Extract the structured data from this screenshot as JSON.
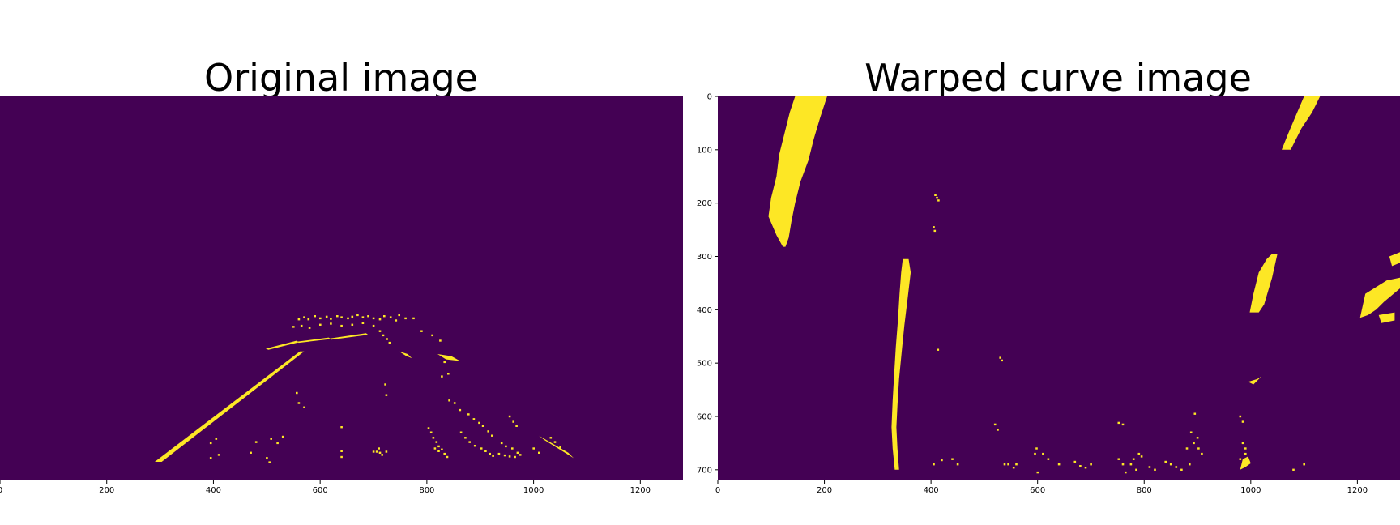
{
  "colors": {
    "background": "#440154",
    "lane": "#fde725",
    "axis": "#000000",
    "page": "#ffffff"
  },
  "chart_data": [
    {
      "type": "heatmap",
      "title": "Original image",
      "colormap": "viridis",
      "binary_values": [
        0,
        1
      ],
      "xlabel": "",
      "ylabel": "",
      "xlim": [
        0,
        1280
      ],
      "ylim": [
        720,
        0
      ],
      "x_ticks": [
        0,
        200,
        400,
        600,
        800,
        1000,
        1200
      ],
      "y_ticks": [],
      "polygons": [
        [
          [
            290,
            685
          ],
          [
            303,
            685
          ],
          [
            570,
            478
          ],
          [
            562,
            478
          ]
        ],
        [
          [
            498,
            473
          ],
          [
            503,
            475
          ],
          [
            560,
            461
          ],
          [
            556,
            458
          ]
        ],
        [
          [
            556,
            460
          ],
          [
            560,
            462
          ],
          [
            620,
            455
          ],
          [
            616,
            452
          ]
        ],
        [
          [
            617,
            454
          ],
          [
            621,
            456
          ],
          [
            690,
            447
          ],
          [
            686,
            444
          ]
        ],
        [
          [
            748,
            478
          ],
          [
            760,
            486
          ],
          [
            772,
            491
          ],
          [
            764,
            483
          ]
        ],
        [
          [
            820,
            483
          ],
          [
            836,
            493
          ],
          [
            862,
            496
          ],
          [
            846,
            487
          ]
        ],
        [
          [
            1010,
            636
          ],
          [
            1020,
            644
          ],
          [
            1075,
            678
          ],
          [
            1065,
            668
          ]
        ]
      ],
      "points": [
        [
          560,
          418
        ],
        [
          570,
          414
        ],
        [
          578,
          418
        ],
        [
          590,
          412
        ],
        [
          600,
          416
        ],
        [
          612,
          413
        ],
        [
          620,
          417
        ],
        [
          632,
          412
        ],
        [
          640,
          414
        ],
        [
          652,
          416
        ],
        [
          660,
          413
        ],
        [
          670,
          410
        ],
        [
          680,
          414
        ],
        [
          690,
          412
        ],
        [
          700,
          416
        ],
        [
          712,
          418
        ],
        [
          720,
          412
        ],
        [
          732,
          414
        ],
        [
          748,
          410
        ],
        [
          760,
          416
        ],
        [
          550,
          432
        ],
        [
          565,
          430
        ],
        [
          580,
          434
        ],
        [
          600,
          428
        ],
        [
          620,
          426
        ],
        [
          640,
          430
        ],
        [
          660,
          428
        ],
        [
          680,
          425
        ],
        [
          700,
          430
        ],
        [
          712,
          440
        ],
        [
          718,
          448
        ],
        [
          725,
          455
        ],
        [
          730,
          462
        ],
        [
          742,
          420
        ],
        [
          775,
          416
        ],
        [
          790,
          440
        ],
        [
          810,
          448
        ],
        [
          825,
          458
        ],
        [
          833,
          498
        ],
        [
          840,
          520
        ],
        [
          828,
          525
        ],
        [
          842,
          570
        ],
        [
          852,
          575
        ],
        [
          862,
          588
        ],
        [
          878,
          596
        ],
        [
          888,
          605
        ],
        [
          898,
          612
        ],
        [
          905,
          618
        ],
        [
          915,
          628
        ],
        [
          922,
          636
        ],
        [
          803,
          622
        ],
        [
          808,
          630
        ],
        [
          812,
          640
        ],
        [
          818,
          648
        ],
        [
          822,
          656
        ],
        [
          828,
          662
        ],
        [
          833,
          670
        ],
        [
          838,
          676
        ],
        [
          822,
          665
        ],
        [
          815,
          660
        ],
        [
          864,
          630
        ],
        [
          872,
          640
        ],
        [
          880,
          648
        ],
        [
          890,
          655
        ],
        [
          902,
          660
        ],
        [
          910,
          665
        ],
        [
          918,
          670
        ],
        [
          924,
          674
        ],
        [
          935,
          670
        ],
        [
          946,
          673
        ],
        [
          955,
          675
        ],
        [
          965,
          676
        ],
        [
          975,
          672
        ],
        [
          955,
          600
        ],
        [
          962,
          610
        ],
        [
          968,
          618
        ],
        [
          940,
          650
        ],
        [
          948,
          656
        ],
        [
          960,
          660
        ],
        [
          970,
          668
        ],
        [
          1050,
          658
        ],
        [
          1040,
          648
        ],
        [
          1032,
          640
        ],
        [
          556,
          556
        ],
        [
          560,
          575
        ],
        [
          570,
          583
        ],
        [
          724,
          560
        ],
        [
          722,
          540
        ],
        [
          640,
          620
        ],
        [
          508,
          642
        ],
        [
          530,
          638
        ],
        [
          520,
          650
        ],
        [
          480,
          648
        ],
        [
          470,
          668
        ],
        [
          405,
          642
        ],
        [
          395,
          650
        ],
        [
          640,
          665
        ],
        [
          700,
          666
        ],
        [
          710,
          660
        ],
        [
          706,
          666
        ],
        [
          712,
          668
        ],
        [
          716,
          672
        ],
        [
          724,
          666
        ],
        [
          640,
          676
        ],
        [
          500,
          678
        ],
        [
          505,
          686
        ],
        [
          395,
          678
        ],
        [
          410,
          672
        ],
        [
          1000,
          660
        ],
        [
          1010,
          668
        ]
      ]
    },
    {
      "type": "heatmap",
      "title": "Warped curve image",
      "colormap": "viridis",
      "binary_values": [
        0,
        1
      ],
      "xlabel": "",
      "ylabel": "",
      "xlim": [
        0,
        1280
      ],
      "ylim": [
        720,
        0
      ],
      "x_ticks": [
        0,
        200,
        400,
        600,
        800,
        1000,
        1200
      ],
      "y_ticks": [
        0,
        100,
        200,
        300,
        400,
        500,
        600,
        700
      ],
      "polygons": [
        [
          [
            145,
            0
          ],
          [
            205,
            0
          ],
          [
            192,
            40
          ],
          [
            180,
            80
          ],
          [
            170,
            120
          ],
          [
            155,
            160
          ],
          [
            145,
            200
          ],
          [
            138,
            235
          ],
          [
            133,
            265
          ],
          [
            127,
            282
          ],
          [
            122,
            282
          ],
          [
            110,
            260
          ],
          [
            95,
            225
          ],
          [
            100,
            190
          ],
          [
            110,
            150
          ],
          [
            115,
            110
          ],
          [
            125,
            70
          ],
          [
            135,
            30
          ]
        ],
        [
          [
            347,
            305
          ],
          [
            358,
            305
          ],
          [
            362,
            330
          ],
          [
            356,
            380
          ],
          [
            350,
            430
          ],
          [
            345,
            480
          ],
          [
            340,
            530
          ],
          [
            337,
            580
          ],
          [
            335,
            620
          ],
          [
            337,
            660
          ],
          [
            340,
            700
          ],
          [
            332,
            700
          ],
          [
            328,
            660
          ],
          [
            326,
            620
          ],
          [
            328,
            570
          ],
          [
            331,
            520
          ],
          [
            334,
            470
          ],
          [
            338,
            420
          ],
          [
            341,
            370
          ],
          [
            344,
            330
          ]
        ],
        [
          [
            1100,
            0
          ],
          [
            1130,
            0
          ],
          [
            1115,
            30
          ],
          [
            1095,
            60
          ],
          [
            1075,
            100
          ],
          [
            1058,
            100
          ],
          [
            1070,
            70
          ],
          [
            1085,
            35
          ]
        ],
        [
          [
            1040,
            295
          ],
          [
            1050,
            295
          ],
          [
            1040,
            340
          ],
          [
            1025,
            390
          ],
          [
            1015,
            405
          ],
          [
            998,
            405
          ],
          [
            1005,
            370
          ],
          [
            1015,
            330
          ],
          [
            1030,
            305
          ]
        ],
        [
          [
            1215,
            370
          ],
          [
            1255,
            345
          ],
          [
            1280,
            340
          ],
          [
            1280,
            360
          ],
          [
            1250,
            385
          ],
          [
            1235,
            400
          ],
          [
            1220,
            410
          ],
          [
            1205,
            415
          ]
        ],
        [
          [
            1260,
            300
          ],
          [
            1280,
            292
          ],
          [
            1280,
            312
          ],
          [
            1265,
            318
          ]
        ],
        [
          [
            1240,
            410
          ],
          [
            1270,
            405
          ],
          [
            1270,
            420
          ],
          [
            1245,
            425
          ]
        ],
        [
          [
            995,
            535
          ],
          [
            1012,
            530
          ],
          [
            1020,
            525
          ],
          [
            1005,
            540
          ]
        ],
        [
          [
            985,
            680
          ],
          [
            995,
            675
          ],
          [
            1000,
            688
          ],
          [
            990,
            695
          ],
          [
            980,
            700
          ]
        ]
      ],
      "points": [
        [
          408,
          185
        ],
        [
          411,
          190
        ],
        [
          414,
          195
        ],
        [
          405,
          245
        ],
        [
          407,
          252
        ],
        [
          413,
          475
        ],
        [
          530,
          490
        ],
        [
          533,
          495
        ],
        [
          980,
          600
        ],
        [
          985,
          610
        ],
        [
          985,
          650
        ],
        [
          990,
          660
        ],
        [
          980,
          680
        ],
        [
          990,
          670
        ],
        [
          895,
          595
        ],
        [
          900,
          640
        ],
        [
          888,
          630
        ],
        [
          893,
          650
        ],
        [
          902,
          660
        ],
        [
          908,
          670
        ],
        [
          880,
          660
        ],
        [
          885,
          690
        ],
        [
          870,
          700
        ],
        [
          860,
          695
        ],
        [
          850,
          690
        ],
        [
          840,
          685
        ],
        [
          820,
          700
        ],
        [
          810,
          695
        ],
        [
          790,
          670
        ],
        [
          795,
          675
        ],
        [
          780,
          680
        ],
        [
          775,
          690
        ],
        [
          785,
          700
        ],
        [
          765,
          705
        ],
        [
          760,
          690
        ],
        [
          752,
          680
        ],
        [
          700,
          690
        ],
        [
          690,
          696
        ],
        [
          680,
          693
        ],
        [
          670,
          685
        ],
        [
          640,
          690
        ],
        [
          620,
          680
        ],
        [
          610,
          670
        ],
        [
          600,
          705
        ],
        [
          560,
          690
        ],
        [
          555,
          696
        ],
        [
          545,
          690
        ],
        [
          538,
          690
        ],
        [
          520,
          615
        ],
        [
          525,
          625
        ],
        [
          440,
          680
        ],
        [
          450,
          690
        ],
        [
          420,
          682
        ],
        [
          405,
          690
        ],
        [
          595,
          670
        ],
        [
          598,
          660
        ],
        [
          752,
          612
        ],
        [
          760,
          615
        ],
        [
          1100,
          690
        ],
        [
          1080,
          700
        ]
      ]
    }
  ]
}
